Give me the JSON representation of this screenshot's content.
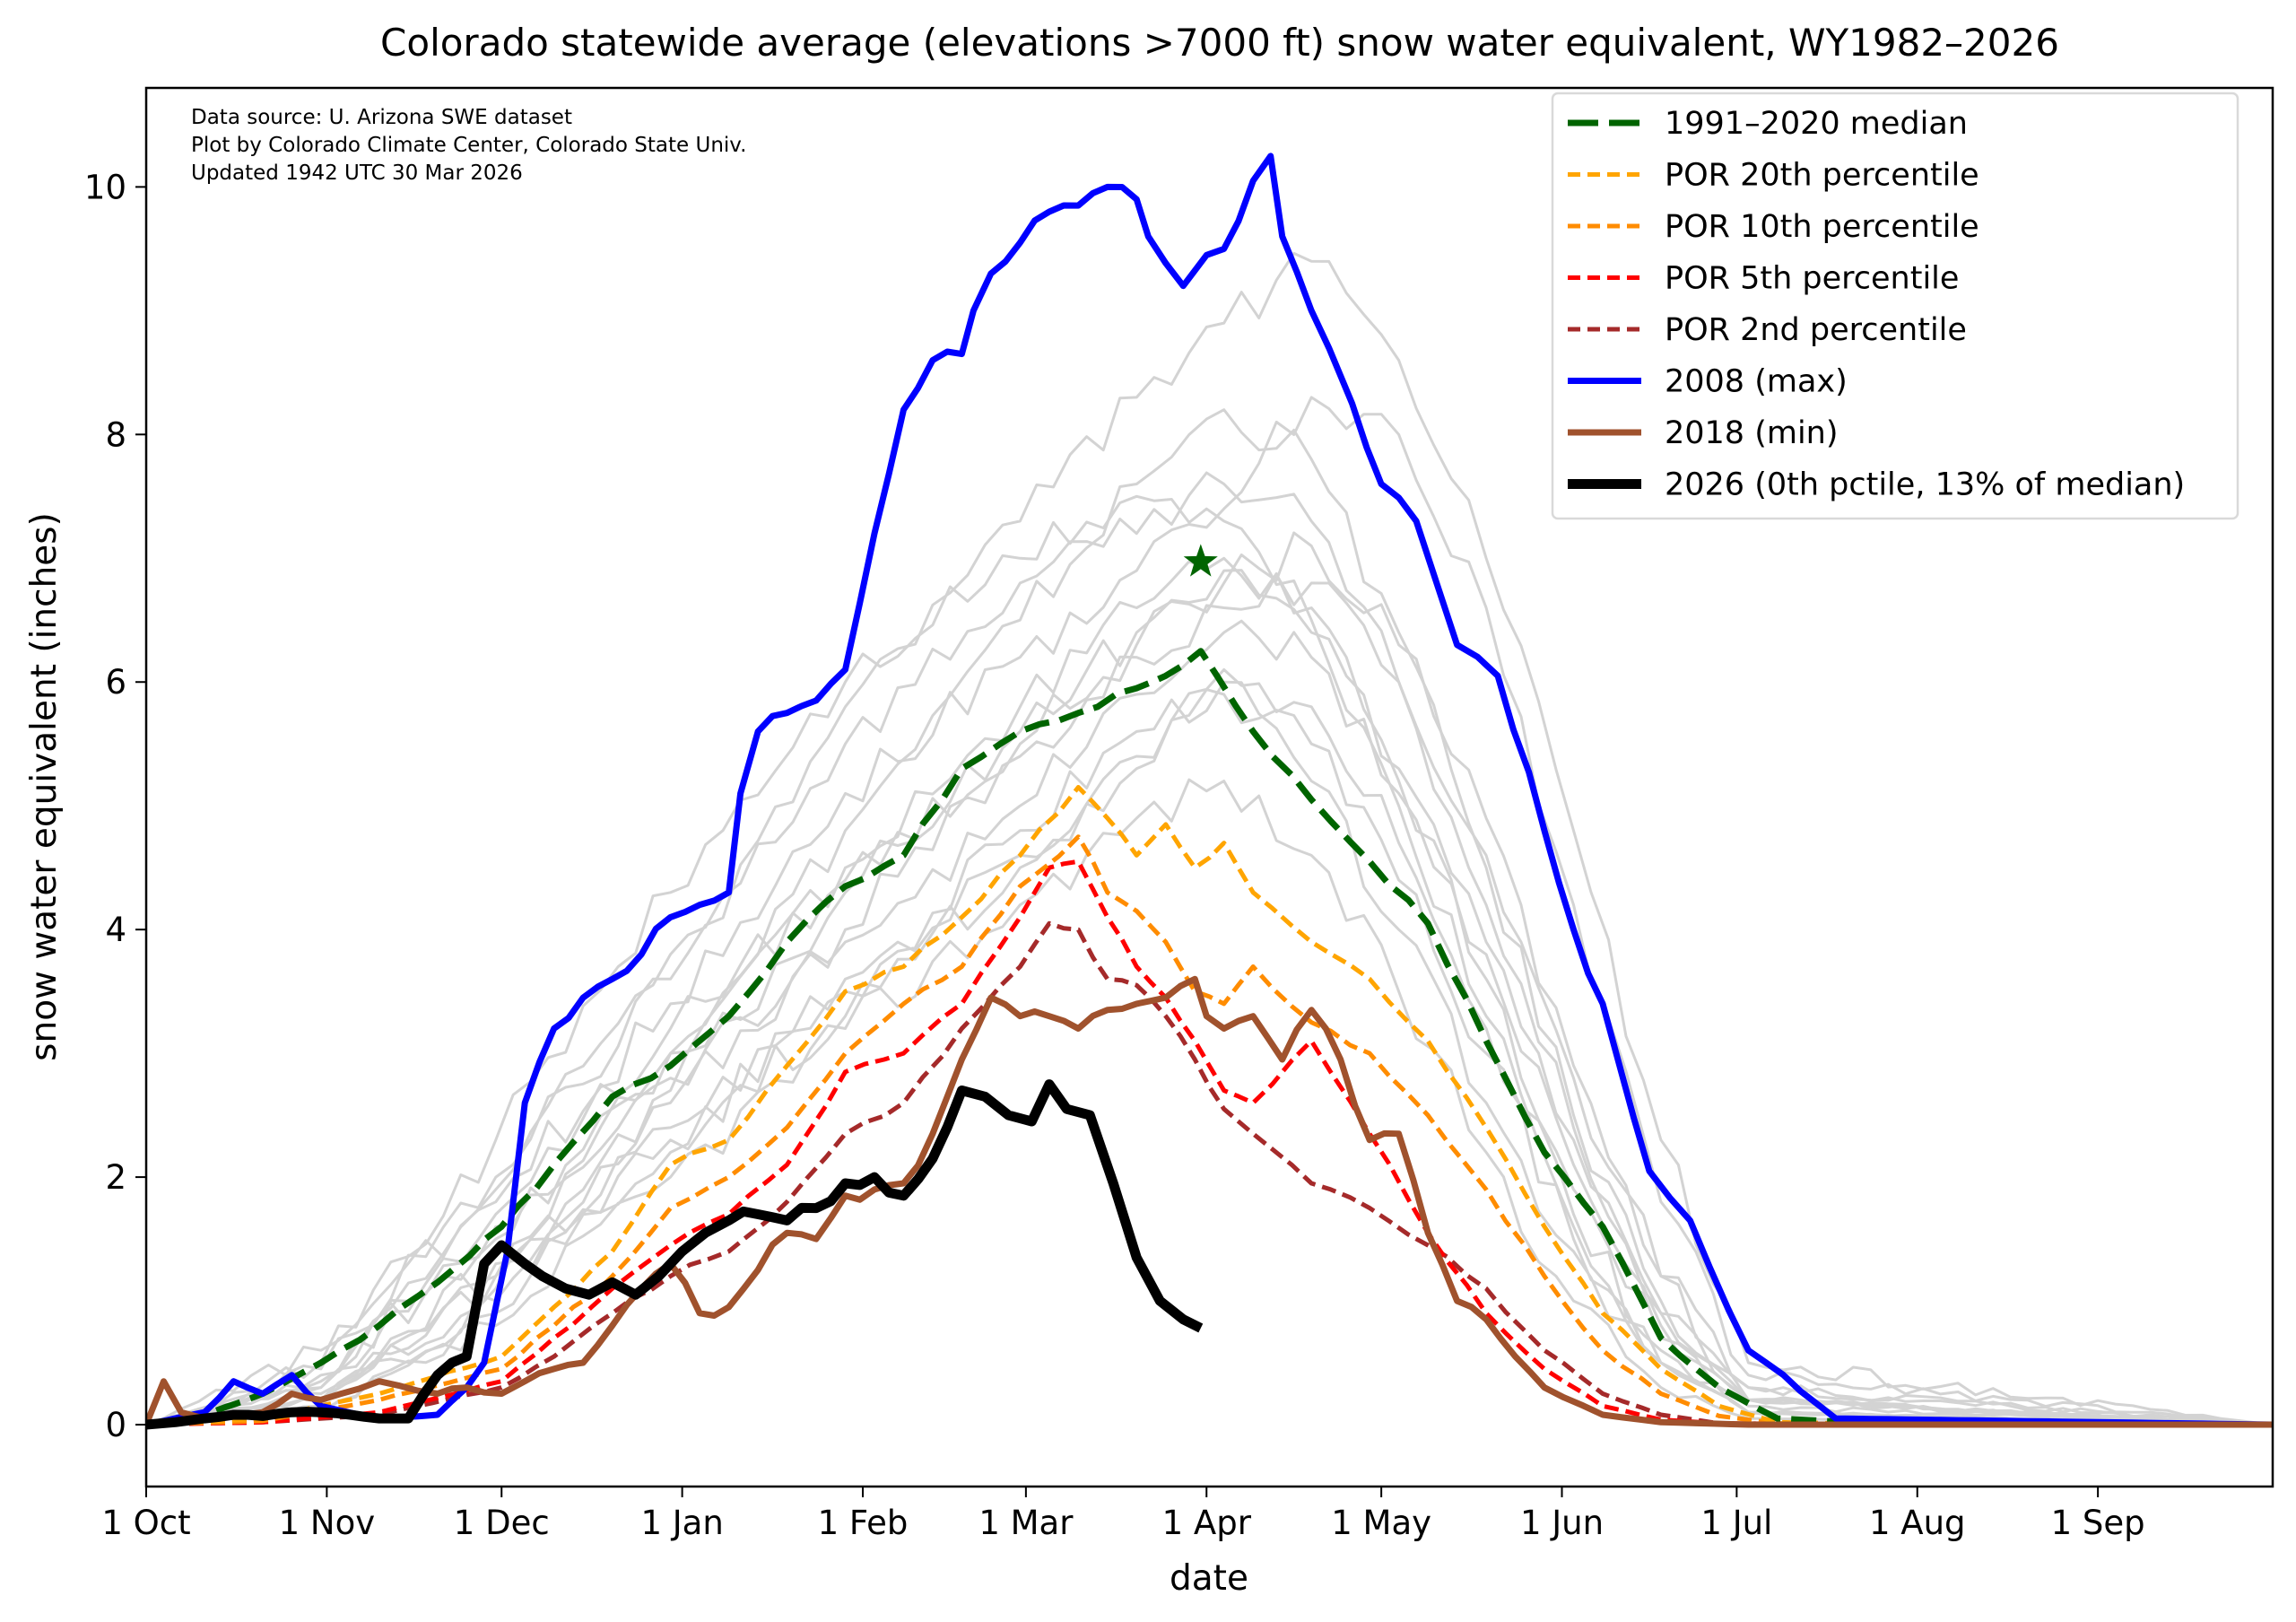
{
  "chart_data": {
    "type": "line",
    "title": "Colorado statewide average (elevations >7000 ft) snow water equivalent, WY1982–2026",
    "xlabel": "date",
    "ylabel": "snow water equivalent (inches)",
    "x_unit": "day of water year (0 = 1 Oct)",
    "xlim": [
      0,
      365
    ],
    "ylim": [
      -0.5,
      10.8
    ],
    "x_ticks": [
      {
        "day": 0,
        "label": "1 Oct"
      },
      {
        "day": 31,
        "label": "1 Nov"
      },
      {
        "day": 61,
        "label": "1 Dec"
      },
      {
        "day": 92,
        "label": "1 Jan"
      },
      {
        "day": 123,
        "label": "1 Feb"
      },
      {
        "day": 151,
        "label": "1 Mar"
      },
      {
        "day": 182,
        "label": "1 Apr"
      },
      {
        "day": 212,
        "label": "1 May"
      },
      {
        "day": 243,
        "label": "1 Jun"
      },
      {
        "day": 273,
        "label": "1 Jul"
      },
      {
        "day": 304,
        "label": "1 Aug"
      },
      {
        "day": 335,
        "label": "1 Sep"
      }
    ],
    "y_ticks": [
      0,
      2,
      4,
      6,
      8,
      10
    ],
    "grid": false,
    "legend_position": "top-right",
    "annotations": [
      "Data source: U. Arizona SWE dataset",
      "Plot by Colorado Climate Center, Colorado State Univ.",
      "Updated 1942 UTC 30 Mar 2026"
    ],
    "median_peak_marker": {
      "label": "median peak",
      "day": 181,
      "value": 6.97,
      "color": "#006400",
      "symbol": "star"
    },
    "series": [
      {
        "name": "1991–2020 median",
        "color": "#006400",
        "style": "dashed",
        "weight": "thick",
        "x": [
          0,
          10,
          20,
          30,
          40,
          50,
          61,
          70,
          80,
          90,
          100,
          110,
          120,
          130,
          140,
          150,
          160,
          170,
          175,
          181,
          190,
          200,
          210,
          220,
          230,
          240,
          250,
          260,
          270,
          280,
          300,
          365
        ],
        "values": [
          0,
          0.08,
          0.25,
          0.5,
          0.8,
          1.15,
          1.6,
          2.1,
          2.65,
          2.9,
          3.3,
          3.9,
          4.35,
          4.6,
          5.3,
          5.6,
          5.75,
          5.95,
          6.05,
          6.25,
          5.6,
          5.05,
          4.55,
          4.05,
          3.1,
          2.2,
          1.6,
          0.7,
          0.3,
          0.05,
          0,
          0
        ]
      },
      {
        "name": "POR 20th percentile",
        "color": "#FFA500",
        "style": "dashed",
        "weight": "medium",
        "x": [
          0,
          20,
          40,
          61,
          70,
          80,
          90,
          100,
          110,
          120,
          130,
          140,
          150,
          160,
          165,
          170,
          175,
          180,
          185,
          190,
          200,
          210,
          220,
          230,
          240,
          250,
          260,
          270,
          280,
          300,
          365
        ],
        "values": [
          0,
          0.05,
          0.25,
          0.55,
          0.95,
          1.4,
          2.1,
          2.3,
          2.9,
          3.5,
          3.7,
          4.1,
          4.6,
          5.15,
          4.9,
          4.6,
          4.85,
          4.5,
          4.7,
          4.3,
          3.9,
          3.6,
          3.1,
          2.4,
          1.6,
          0.9,
          0.45,
          0.15,
          0.02,
          0,
          0
        ]
      },
      {
        "name": "POR 10th percentile",
        "color": "#FF8C00",
        "style": "dashed",
        "weight": "medium",
        "x": [
          0,
          20,
          40,
          61,
          70,
          80,
          90,
          100,
          110,
          120,
          130,
          140,
          150,
          160,
          165,
          170,
          175,
          180,
          185,
          190,
          200,
          210,
          220,
          230,
          240,
          250,
          260,
          270,
          280,
          300,
          365
        ],
        "values": [
          0,
          0.03,
          0.2,
          0.45,
          0.8,
          1.2,
          1.75,
          2.0,
          2.4,
          3.0,
          3.4,
          3.7,
          4.35,
          4.75,
          4.3,
          4.15,
          3.9,
          3.5,
          3.4,
          3.7,
          3.25,
          3.0,
          2.5,
          1.9,
          1.2,
          0.6,
          0.25,
          0.07,
          0.01,
          0,
          0
        ]
      },
      {
        "name": "POR 5th percentile",
        "color": "#FF0000",
        "style": "dashed",
        "weight": "medium",
        "x": [
          0,
          20,
          40,
          61,
          70,
          80,
          90,
          100,
          110,
          120,
          130,
          140,
          150,
          155,
          160,
          165,
          170,
          175,
          180,
          185,
          190,
          200,
          210,
          220,
          230,
          240,
          250,
          260,
          270,
          300,
          365
        ],
        "values": [
          0,
          0.02,
          0.1,
          0.35,
          0.7,
          1.1,
          1.45,
          1.7,
          2.1,
          2.85,
          3.0,
          3.4,
          4.1,
          4.5,
          4.55,
          4.1,
          3.7,
          3.45,
          3.1,
          2.7,
          2.6,
          3.1,
          2.35,
          1.55,
          0.9,
          0.45,
          0.15,
          0.04,
          0.01,
          0,
          0
        ]
      },
      {
        "name": "POR 2nd percentile",
        "color": "#A52A2A",
        "style": "dashed",
        "weight": "medium",
        "x": [
          0,
          20,
          40,
          61,
          70,
          80,
          90,
          100,
          110,
          120,
          130,
          140,
          150,
          155,
          160,
          165,
          170,
          175,
          180,
          185,
          190,
          200,
          210,
          220,
          230,
          240,
          250,
          260,
          270,
          300,
          365
        ],
        "values": [
          0,
          0.02,
          0.08,
          0.3,
          0.55,
          0.9,
          1.2,
          1.4,
          1.8,
          2.35,
          2.6,
          3.2,
          3.7,
          4.05,
          4.0,
          3.6,
          3.55,
          3.3,
          2.95,
          2.55,
          2.35,
          1.95,
          1.75,
          1.45,
          1.1,
          0.6,
          0.25,
          0.08,
          0.01,
          0,
          0
        ]
      },
      {
        "name": "2008 (max)",
        "color": "#0000FF",
        "style": "solid",
        "weight": "thick",
        "x": [
          0,
          10,
          15,
          20,
          25,
          30,
          40,
          50,
          55,
          58,
          62,
          65,
          70,
          75,
          80,
          85,
          90,
          95,
          100,
          102,
          105,
          110,
          115,
          120,
          125,
          130,
          135,
          140,
          142,
          145,
          150,
          155,
          160,
          165,
          170,
          172,
          178,
          182,
          185,
          190,
          193,
          195,
          200,
          203,
          207,
          212,
          218,
          225,
          232,
          240,
          245,
          250,
          258,
          265,
          275,
          290,
          365
        ],
        "values": [
          0,
          0.1,
          0.35,
          0.25,
          0.4,
          0.15,
          0.05,
          0.08,
          0.3,
          0.5,
          1.4,
          2.6,
          3.2,
          3.45,
          3.6,
          3.8,
          4.1,
          4.2,
          4.3,
          5.1,
          5.6,
          5.75,
          5.85,
          6.1,
          7.2,
          8.2,
          8.6,
          8.65,
          9.0,
          9.3,
          9.55,
          9.8,
          9.85,
          10.0,
          9.9,
          9.6,
          9.2,
          9.45,
          9.5,
          10.05,
          10.25,
          9.6,
          9.0,
          8.7,
          8.25,
          7.6,
          7.3,
          6.3,
          6.05,
          4.8,
          4.0,
          3.4,
          2.05,
          1.65,
          0.6,
          0.05,
          0
        ]
      },
      {
        "name": "2018 (min)",
        "color": "#A0522D",
        "style": "solid",
        "weight": "thick",
        "x": [
          0,
          3,
          6,
          10,
          15,
          20,
          25,
          30,
          40,
          50,
          55,
          61,
          65,
          70,
          75,
          80,
          85,
          90,
          95,
          100,
          105,
          110,
          115,
          120,
          125,
          130,
          135,
          140,
          145,
          150,
          155,
          160,
          165,
          170,
          175,
          180,
          182,
          185,
          190,
          195,
          200,
          205,
          210,
          215,
          220,
          225,
          230,
          235,
          240,
          250,
          260,
          275,
          365
        ],
        "values": [
          0,
          0.35,
          0.1,
          0.05,
          0.08,
          0.1,
          0.25,
          0.2,
          0.35,
          0.25,
          0.3,
          0.25,
          0.35,
          0.45,
          0.5,
          0.8,
          1.1,
          1.3,
          0.9,
          0.95,
          1.25,
          1.55,
          1.5,
          1.85,
          1.9,
          1.95,
          2.35,
          2.95,
          3.45,
          3.3,
          3.3,
          3.2,
          3.35,
          3.4,
          3.45,
          3.6,
          3.3,
          3.2,
          3.3,
          2.95,
          3.35,
          2.95,
          2.3,
          2.35,
          1.55,
          1.0,
          0.85,
          0.55,
          0.3,
          0.08,
          0.02,
          0,
          0
        ]
      },
      {
        "name": "2026 (0th pctile, 13% of median)",
        "color": "#000000",
        "style": "solid",
        "weight": "heavy",
        "x": [
          0,
          5,
          10,
          15,
          20,
          25,
          30,
          35,
          40,
          45,
          50,
          55,
          58,
          61,
          65,
          68,
          72,
          76,
          80,
          84,
          88,
          92,
          96,
          100,
          105,
          110,
          115,
          120,
          125,
          130,
          135,
          140,
          144,
          148,
          152,
          155,
          158,
          162,
          166,
          170,
          174,
          178,
          181
        ],
        "values": [
          0,
          0.02,
          0.05,
          0.08,
          0.07,
          0.1,
          0.1,
          0.08,
          0.05,
          0.05,
          0.4,
          0.55,
          1.3,
          1.45,
          1.3,
          1.2,
          1.1,
          1.05,
          1.15,
          1.05,
          1.2,
          1.4,
          1.55,
          1.65,
          1.7,
          1.65,
          1.75,
          1.95,
          2.0,
          1.85,
          2.15,
          2.7,
          2.65,
          2.5,
          2.45,
          2.75,
          2.55,
          2.5,
          1.95,
          1.35,
          1.0,
          0.85,
          0.78
        ]
      }
    ],
    "background_series_note": "Individual water years WY1982–2025 (light gray)",
    "background_series_color": "#D3D3D3",
    "background_series": [
      {
        "x": [
          0,
          30,
          60,
          90,
          120,
          150,
          170,
          185,
          200,
          215,
          230,
          245,
          260,
          275,
          365
        ],
        "values": [
          0,
          0.2,
          1.2,
          2.4,
          3.5,
          4.8,
          5.6,
          6.0,
          5.2,
          4.0,
          2.6,
          1.4,
          0.5,
          0.1,
          0
        ]
      },
      {
        "x": [
          0,
          30,
          60,
          90,
          120,
          150,
          170,
          185,
          200,
          215,
          230,
          245,
          260,
          275,
          365
        ],
        "values": [
          0,
          0.4,
          1.5,
          3.0,
          4.8,
          6.5,
          7.6,
          8.2,
          7.8,
          6.4,
          4.5,
          2.5,
          1.0,
          0.2,
          0
        ]
      },
      {
        "x": [
          0,
          30,
          60,
          90,
          120,
          150,
          170,
          185,
          200,
          215,
          230,
          245,
          260,
          275,
          365
        ],
        "values": [
          0,
          0.1,
          0.8,
          2.0,
          3.2,
          4.2,
          4.9,
          5.2,
          4.6,
          3.5,
          2.2,
          1.0,
          0.3,
          0.05,
          0
        ]
      },
      {
        "x": [
          0,
          30,
          60,
          90,
          120,
          150,
          170,
          185,
          200,
          215,
          230,
          245,
          260,
          275,
          365
        ],
        "values": [
          0,
          0.3,
          1.9,
          3.8,
          5.5,
          6.8,
          7.2,
          7.6,
          7.3,
          6.0,
          4.2,
          2.4,
          0.9,
          0.2,
          0
        ]
      },
      {
        "x": [
          0,
          30,
          60,
          90,
          120,
          150,
          170,
          185,
          200,
          215,
          230,
          245,
          260,
          275,
          365
        ],
        "values": [
          0,
          0.5,
          2.3,
          4.3,
          6.0,
          7.0,
          7.5,
          7.3,
          6.5,
          5.0,
          3.3,
          1.6,
          0.5,
          0.1,
          0
        ]
      },
      {
        "x": [
          0,
          30,
          60,
          90,
          120,
          150,
          170,
          185,
          200,
          215,
          230,
          245,
          260,
          275,
          365
        ],
        "values": [
          0,
          0.2,
          1.0,
          2.6,
          4.0,
          5.4,
          6.2,
          6.6,
          6.8,
          6.0,
          4.6,
          2.8,
          1.2,
          0.3,
          0
        ]
      },
      {
        "x": [
          0,
          30,
          60,
          90,
          120,
          150,
          170,
          185,
          200,
          215,
          230,
          245,
          260,
          275,
          365
        ],
        "values": [
          0,
          0.15,
          1.3,
          3.0,
          4.5,
          5.8,
          6.6,
          7.0,
          6.6,
          5.2,
          3.6,
          1.9,
          0.7,
          0.15,
          0
        ]
      },
      {
        "x": [
          0,
          30,
          60,
          90,
          120,
          150,
          170,
          185,
          200,
          215,
          230,
          245,
          260,
          275,
          365
        ],
        "values": [
          0,
          0.6,
          1.8,
          3.4,
          5.1,
          6.2,
          6.9,
          7.4,
          8.3,
          8.0,
          6.6,
          4.2,
          1.8,
          0.4,
          0
        ]
      },
      {
        "x": [
          0,
          30,
          60,
          90,
          120,
          150,
          170,
          185,
          200,
          215,
          230,
          245,
          260,
          275,
          365
        ],
        "values": [
          0,
          0.3,
          1.6,
          2.8,
          3.9,
          5.0,
          5.9,
          6.4,
          6.2,
          5.1,
          3.8,
          2.1,
          0.8,
          0.2,
          0
        ]
      },
      {
        "x": [
          0,
          30,
          60,
          90,
          120,
          150,
          170,
          185,
          200,
          215,
          230,
          245,
          260,
          275,
          365
        ],
        "values": [
          0,
          0.25,
          1.2,
          2.2,
          3.6,
          4.6,
          5.3,
          5.9,
          5.5,
          4.4,
          3.0,
          1.5,
          0.5,
          0.1,
          0
        ]
      },
      {
        "x": [
          0,
          30,
          60,
          90,
          120,
          150,
          170,
          185,
          200,
          215,
          230,
          245,
          260,
          275,
          365
        ],
        "values": [
          0,
          0.45,
          2.0,
          3.6,
          5.8,
          7.3,
          8.3,
          8.9,
          9.4,
          8.6,
          7.0,
          4.8,
          2.3,
          0.5,
          0
        ]
      },
      {
        "x": [
          0,
          30,
          60,
          90,
          120,
          150,
          170,
          185,
          200,
          215,
          230,
          245,
          260,
          275,
          365
        ],
        "values": [
          0,
          0.1,
          0.9,
          2.3,
          3.3,
          4.5,
          5.4,
          6.1,
          5.8,
          4.7,
          3.2,
          1.7,
          0.6,
          0.1,
          0
        ]
      },
      {
        "x": [
          0,
          30,
          60,
          90,
          120,
          150,
          170,
          185,
          200,
          215,
          230,
          245,
          260,
          275,
          365
        ],
        "values": [
          0,
          0.35,
          1.7,
          3.2,
          4.4,
          5.5,
          6.3,
          6.8,
          7.1,
          6.3,
          4.9,
          2.9,
          1.2,
          0.3,
          0
        ]
      },
      {
        "x": [
          0,
          30,
          60,
          90,
          120,
          150,
          170,
          185,
          200,
          215,
          230,
          245,
          260,
          275,
          365
        ],
        "values": [
          0,
          0.2,
          1.1,
          2.7,
          4.3,
          5.6,
          6.4,
          6.9,
          6.4,
          5.3,
          3.9,
          2.3,
          0.9,
          0.2,
          0
        ]
      }
    ]
  }
}
